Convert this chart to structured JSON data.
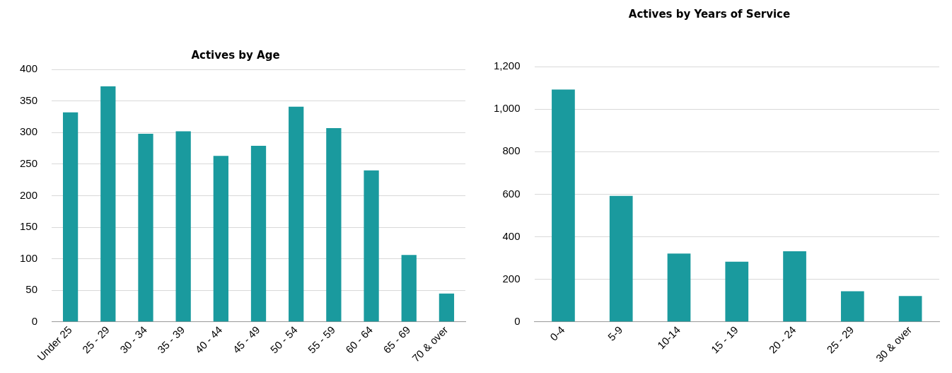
{
  "chart_data": [
    {
      "type": "bar",
      "title": "Actives by Age",
      "categories": [
        "Under 25",
        "25 - 29",
        "30 - 34",
        "35 - 39",
        "40 - 44",
        "45 - 49",
        "50 - 54",
        "55 - 59",
        "60 - 64",
        "65 - 69",
        "70 & over"
      ],
      "series": [
        {
          "color": "#1a9a9e",
          "values": [
            332,
            373,
            298,
            302,
            263,
            279,
            341,
            307,
            240,
            106,
            45
          ]
        }
      ],
      "ylim": [
        0,
        400
      ],
      "yticks": [
        0,
        50,
        100,
        150,
        200,
        250,
        300,
        350,
        400
      ],
      "grid": "y",
      "legend": false
    },
    {
      "type": "bar",
      "title": "Actives by Years of Service",
      "categories": [
        "0-4",
        "5-9",
        "10-14",
        "15 - 19",
        "20 - 24",
        "25 - 29",
        "30 & over"
      ],
      "series": [
        {
          "color": "#1a9a9e",
          "values": [
            1092,
            592,
            321,
            283,
            332,
            144,
            122
          ]
        }
      ],
      "ylim": [
        0,
        1200
      ],
      "yticks": [
        0,
        {
          "value": 200,
          "label": "200"
        },
        {
          "value": 400,
          "label": "400"
        },
        {
          "value": 600,
          "label": "600"
        },
        {
          "value": 800,
          "label": "800"
        },
        {
          "value": 1000,
          "label": "1,000"
        },
        {
          "value": 1200,
          "label": "1,200"
        }
      ],
      "grid": "y",
      "legend": false
    }
  ]
}
